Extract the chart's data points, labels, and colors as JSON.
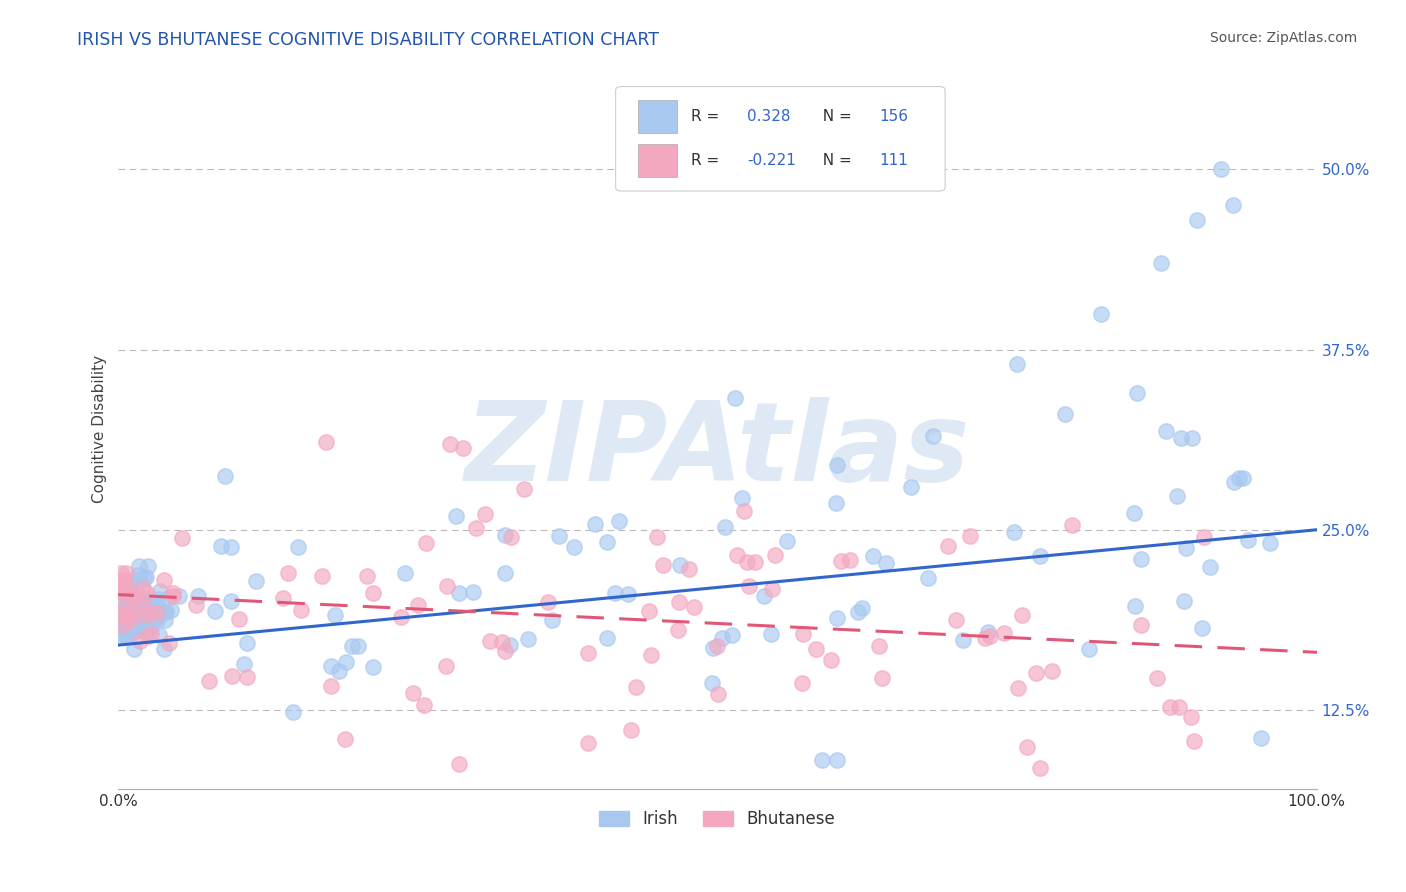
{
  "title": "IRISH VS BHUTANESE COGNITIVE DISABILITY CORRELATION CHART",
  "source": "Source: ZipAtlas.com",
  "ylabel": "Cognitive Disability",
  "xlim": [
    0.0,
    1.0
  ],
  "ylim": [
    0.07,
    0.57
  ],
  "yticks": [
    0.125,
    0.25,
    0.375,
    0.5
  ],
  "ytick_labels": [
    "12.5%",
    "25.0%",
    "37.5%",
    "50.0%"
  ],
  "irish_R": 0.328,
  "irish_N": 156,
  "bhutanese_R": -0.221,
  "bhutanese_N": 111,
  "irish_color": "#a8c8f0",
  "bhutanese_color": "#f4a8c0",
  "irish_line_color": "#3366cc",
  "bhutanese_line_color": "#e05878",
  "watermark": "ZIPAtlas",
  "background_color": "#ffffff",
  "grid_color": "#bbbbbb",
  "title_color": "#2255aa",
  "legend_text_color": "#3366cc",
  "legend_label_color": "#333333",
  "source_color": "#555555"
}
